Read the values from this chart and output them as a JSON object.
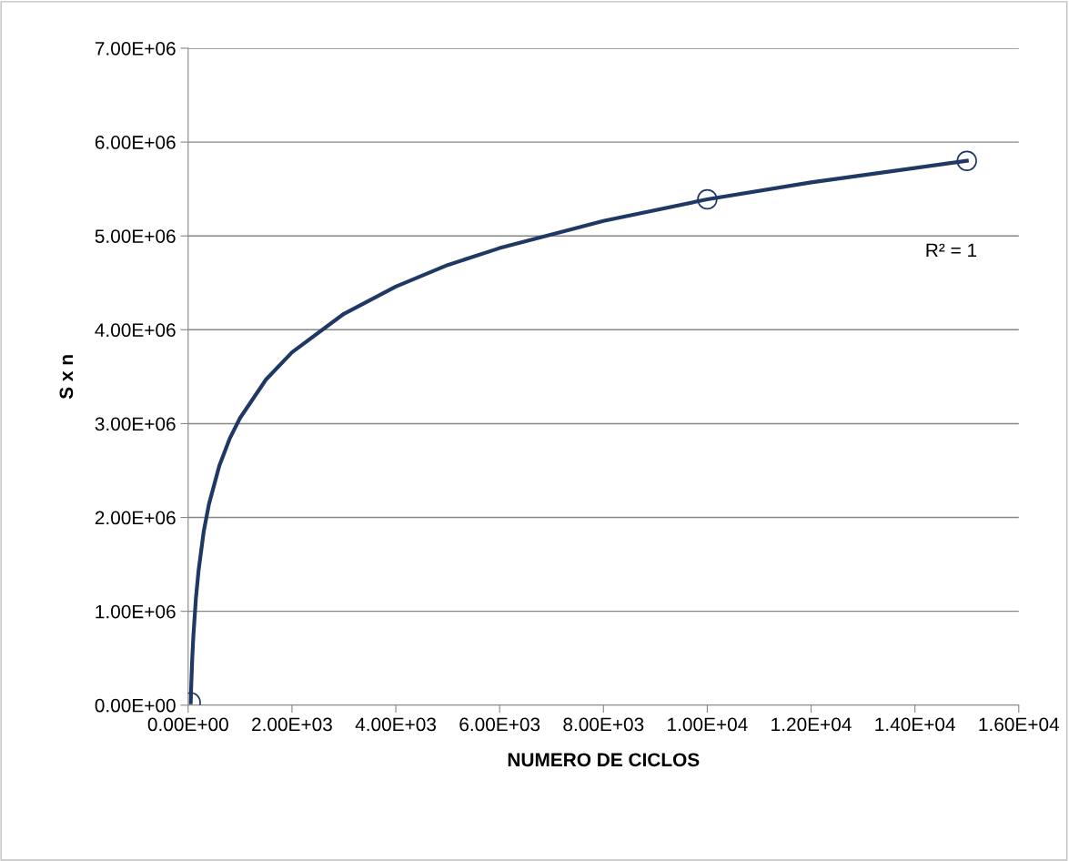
{
  "chart_data": {
    "type": "scatter",
    "xlabel": "NUMERO DE CICLOS",
    "ylabel": "S x n",
    "series": [
      {
        "color": "#1f3864",
        "x": [
          50,
          10000,
          15000
        ],
        "values": [
          30000,
          5390000,
          5800000
        ],
        "marker": "circle"
      },
      {
        "type": "line",
        "color": "#1f3864",
        "x": [
          50,
          60,
          80,
          100,
          150,
          200,
          300,
          400,
          600,
          800,
          1000,
          1500,
          2000,
          3000,
          4000,
          5000,
          6000,
          8000,
          10000,
          12000,
          15000
        ],
        "values": [
          30000,
          220000,
          510000,
          730000,
          1140000,
          1430000,
          1850000,
          2140000,
          2550000,
          2840000,
          3060000,
          3470000,
          3760000,
          4170000,
          4460000,
          4690000,
          4870000,
          5160000,
          5390000,
          5570000,
          5800000
        ],
        "marker": "none",
        "line_style": "solid"
      }
    ],
    "xlim": [
      0,
      16000
    ],
    "xticks": [
      {
        "value": 0,
        "label": "0.00E+00"
      },
      {
        "value": 2000,
        "label": "2.00E+03"
      },
      {
        "value": 4000,
        "label": "4.00E+03"
      },
      {
        "value": 6000,
        "label": "6.00E+03"
      },
      {
        "value": 8000,
        "label": "8.00E+03"
      },
      {
        "value": 10000,
        "label": "1.00E+04"
      },
      {
        "value": 12000,
        "label": "1.20E+04"
      },
      {
        "value": 14000,
        "label": "1.40E+04"
      },
      {
        "value": 16000,
        "label": "1.60E+04"
      }
    ],
    "ylim": [
      0,
      7000000
    ],
    "yticks": [
      {
        "value": 0,
        "label": "0.00E+00"
      },
      {
        "value": 1000000,
        "label": "1.00E+06"
      },
      {
        "value": 2000000,
        "label": "2.00E+06"
      },
      {
        "value": 3000000,
        "label": "3.00E+06"
      },
      {
        "value": 4000000,
        "label": "4.00E+06"
      },
      {
        "value": 5000000,
        "label": "5.00E+06"
      },
      {
        "value": 6000000,
        "label": "6.00E+06"
      },
      {
        "value": 7000000,
        "label": "7.00E+06"
      }
    ],
    "grid": "y",
    "annotations": [
      "R² = 1"
    ]
  }
}
